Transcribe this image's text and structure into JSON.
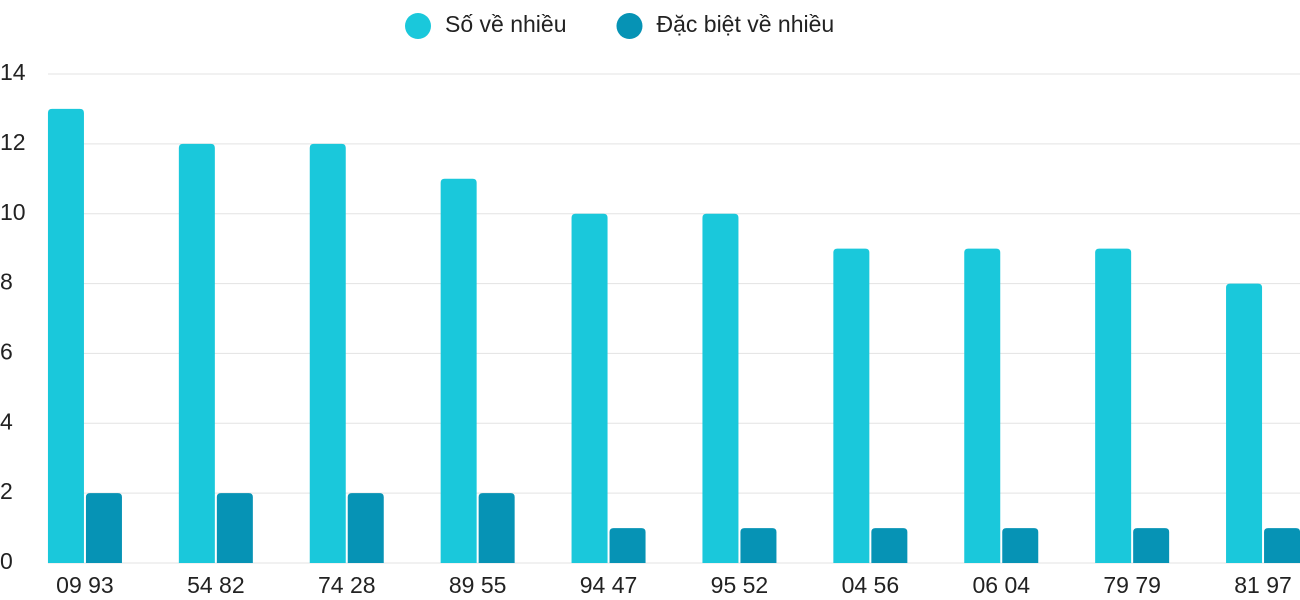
{
  "chart_data": {
    "type": "bar",
    "categories": [
      "09 93",
      "54 82",
      "74 28",
      "89 55",
      "94 47",
      "95 52",
      "04 56",
      "06 04",
      "79 79",
      "81 97"
    ],
    "series": [
      {
        "name": "Số về nhiều",
        "color": "#1ac8db",
        "values": [
          13,
          12,
          12,
          11,
          10,
          10,
          9,
          9,
          9,
          8
        ]
      },
      {
        "name": "Đặc biệt về nhiều",
        "color": "#0693b5",
        "values": [
          2,
          2,
          2,
          2,
          1,
          1,
          1,
          1,
          1,
          1
        ]
      }
    ],
    "ylim": [
      0,
      14
    ],
    "yticks": [
      0,
      2,
      4,
      6,
      8,
      10,
      12,
      14
    ],
    "grid": true,
    "legend": "top"
  }
}
